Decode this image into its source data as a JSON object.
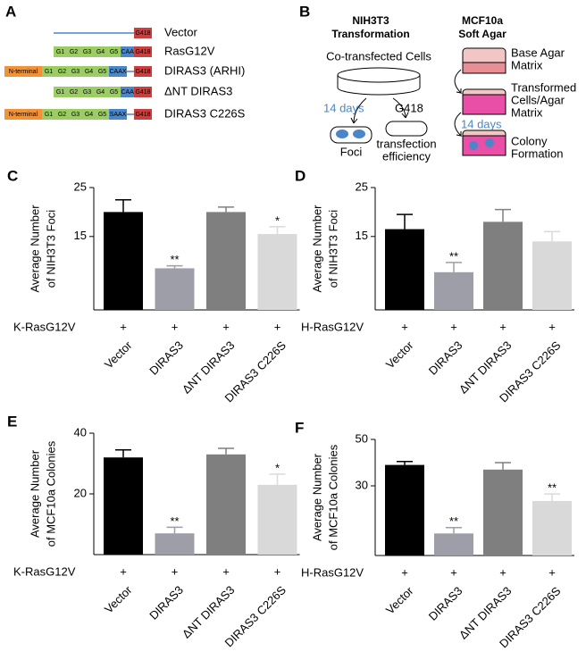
{
  "panel_a": {
    "letter": "A",
    "constructs": [
      {
        "name": "Vector",
        "domains": []
      },
      {
        "name": "RasG12V",
        "domains": [
          "G1",
          "G2",
          "G3",
          "G4",
          "G5",
          "CAAX"
        ]
      },
      {
        "name": "DIRAS3 (ARHI)",
        "domains": [
          "N-terminal",
          "G1",
          "G2",
          "G3",
          "G4",
          "G5",
          "CAAX"
        ]
      },
      {
        "name": "ΔNT DIRAS3",
        "domains": [
          "G1",
          "G2",
          "G3",
          "G4",
          "G5",
          "CAAX"
        ]
      },
      {
        "name": "DIRAS3 C226S",
        "domains": [
          "N-terminal",
          "G1",
          "G2",
          "G3",
          "G4",
          "G5",
          "SAAX"
        ]
      }
    ],
    "marker": "G418"
  },
  "panel_b": {
    "letter": "B",
    "left_title": [
      "NIH3T3",
      "Transformation"
    ],
    "cells": "Co-transfected Cells",
    "left_days": "14 days",
    "selection": "G418",
    "foci": "Foci",
    "efficiency": [
      "transfection",
      "efficiency"
    ],
    "right_title": [
      "MCF10a",
      "Soft Agar"
    ],
    "steps": [
      [
        "Base Agar",
        "Matrix"
      ],
      [
        "Transformed",
        "Cells/Agar",
        "Matrix"
      ],
      [
        "Colony",
        "Formation"
      ]
    ],
    "right_days": "14 days"
  },
  "chart_data": [
    {
      "type": "bar",
      "panel": "C",
      "ylabel": [
        "Average Number",
        "of NIH3T3 Foci"
      ],
      "row_label": "K-RasG12V",
      "row_values": [
        "+",
        "+",
        "+",
        "+"
      ],
      "categories": [
        "Vector",
        "DIRAS3",
        "ΔNT DIRAS3",
        "DIRAS3 C226S"
      ],
      "values": [
        20,
        8.5,
        20,
        15.5
      ],
      "errors": [
        2.5,
        0.5,
        1,
        1.5
      ],
      "annotations": [
        null,
        "**",
        null,
        "*"
      ],
      "colors": [
        "#000000",
        "#9e9ea8",
        "#7f7f7f",
        "#d9d9d9"
      ],
      "ylim": [
        0,
        25
      ],
      "yticks": [
        15,
        25
      ]
    },
    {
      "type": "bar",
      "panel": "D",
      "ylabel": [
        "Average Number",
        "of NIH3T3 Foci"
      ],
      "row_label": "H-RasG12V",
      "row_values": [
        "+",
        "+",
        "+",
        "+"
      ],
      "categories": [
        "Vector",
        "DIRAS3",
        "ΔNT DIRAS3",
        "DIRAS3 C226S"
      ],
      "values": [
        16.5,
        7.7,
        18,
        14
      ],
      "errors": [
        3,
        2,
        2.5,
        2
      ],
      "annotations": [
        null,
        "**",
        null,
        null
      ],
      "colors": [
        "#000000",
        "#9e9ea8",
        "#7f7f7f",
        "#d9d9d9"
      ],
      "ylim": [
        0,
        25
      ],
      "yticks": [
        15,
        25
      ]
    },
    {
      "type": "bar",
      "panel": "E",
      "ylabel": [
        "Average Number",
        "of MCF10a Colonies"
      ],
      "row_label": "K-RasG12V",
      "row_values": [
        "+",
        "+",
        "+",
        "+"
      ],
      "categories": [
        "Vector",
        "DIRAS3",
        "ΔNT DIRAS3",
        "DIRAS3 C226S"
      ],
      "values": [
        32,
        7,
        33,
        23
      ],
      "errors": [
        2.5,
        2,
        2,
        3.5
      ],
      "annotations": [
        null,
        "**",
        null,
        "*"
      ],
      "colors": [
        "#000000",
        "#9e9ea8",
        "#7f7f7f",
        "#d9d9d9"
      ],
      "ylim": [
        0,
        40
      ],
      "yticks": [
        20,
        40
      ]
    },
    {
      "type": "bar",
      "panel": "F",
      "ylabel": [
        "Average Number",
        "of MCF10a Colonies"
      ],
      "row_label": "H-RasG12V",
      "row_values": [
        "+",
        "+",
        "+",
        "+"
      ],
      "categories": [
        "Vector",
        "DIRAS3",
        "ΔNT DIRAS3",
        "DIRAS3 C226S"
      ],
      "values": [
        39,
        9.5,
        37,
        23.5
      ],
      "errors": [
        1.5,
        2.5,
        3,
        3
      ],
      "annotations": [
        null,
        "**",
        null,
        "**"
      ],
      "colors": [
        "#000000",
        "#9e9ea8",
        "#7f7f7f",
        "#d9d9d9"
      ],
      "ylim": [
        0,
        50
      ],
      "yticks": [
        30,
        50
      ]
    }
  ]
}
